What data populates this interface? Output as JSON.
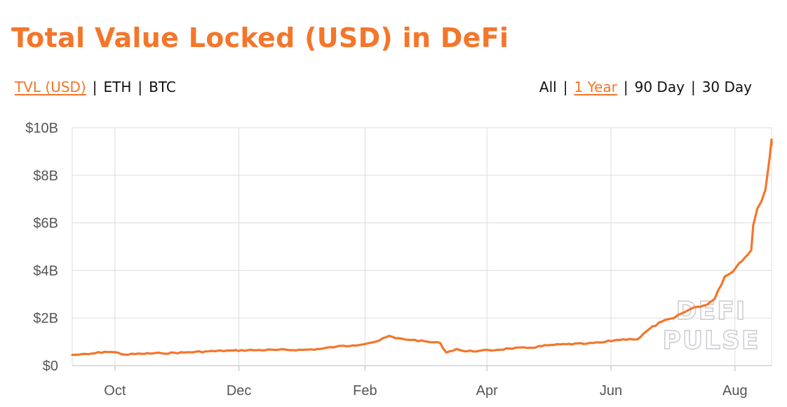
{
  "title": "Total Value Locked (USD) in DeFi",
  "metric_options": [
    {
      "label": "TVL (USD)",
      "active": true
    },
    {
      "label": "ETH",
      "active": false
    },
    {
      "label": "BTC",
      "active": false
    }
  ],
  "range_options": [
    {
      "label": "All",
      "active": false
    },
    {
      "label": "1 Year",
      "active": true
    },
    {
      "label": "90 Day",
      "active": false
    },
    {
      "label": "30 Day",
      "active": false
    }
  ],
  "separator": "|",
  "watermark": [
    "DEFI",
    "PULSE"
  ],
  "colors": {
    "accent": "#f4762a",
    "line": "#f4762a",
    "grid": "#dddddd",
    "tick_text": "#555555"
  },
  "chart_data": {
    "type": "line",
    "title": "Total Value Locked (USD) in DeFi",
    "xlabel": "",
    "ylabel": "",
    "y_unit": "billions USD",
    "ylim": [
      0,
      10
    ],
    "y_ticks": [
      0,
      2,
      4,
      6,
      8,
      10
    ],
    "y_tick_labels": [
      "$0",
      "$2B",
      "$4B",
      "$6B",
      "$8B",
      "$10B"
    ],
    "xlim": [
      "2019-09-10",
      "2020-08-19"
    ],
    "x_ticks": [
      "2019-10-01",
      "2019-12-01",
      "2020-02-01",
      "2020-04-01",
      "2020-06-01",
      "2020-08-01"
    ],
    "x_tick_labels": [
      "Oct",
      "Dec",
      "Feb",
      "Apr",
      "Jun",
      "Aug"
    ],
    "grid": true,
    "series": [
      {
        "color": "#f4762a",
        "points": [
          [
            "2019-09-10",
            0.45
          ],
          [
            "2019-09-18",
            0.48
          ],
          [
            "2019-09-26",
            0.58
          ],
          [
            "2019-10-01",
            0.56
          ],
          [
            "2019-10-06",
            0.46
          ],
          [
            "2019-10-14",
            0.5
          ],
          [
            "2019-10-24",
            0.52
          ],
          [
            "2019-11-04",
            0.55
          ],
          [
            "2019-11-16",
            0.6
          ],
          [
            "2019-11-28",
            0.63
          ],
          [
            "2019-12-08",
            0.65
          ],
          [
            "2019-12-20",
            0.66
          ],
          [
            "2020-01-01",
            0.66
          ],
          [
            "2020-01-10",
            0.7
          ],
          [
            "2020-01-18",
            0.8
          ],
          [
            "2020-01-26",
            0.85
          ],
          [
            "2020-02-03",
            0.95
          ],
          [
            "2020-02-08",
            1.05
          ],
          [
            "2020-02-13",
            1.25
          ],
          [
            "2020-02-16",
            1.15
          ],
          [
            "2020-02-24",
            1.08
          ],
          [
            "2020-03-03",
            1.0
          ],
          [
            "2020-03-09",
            0.95
          ],
          [
            "2020-03-12",
            0.55
          ],
          [
            "2020-03-17",
            0.7
          ],
          [
            "2020-03-21",
            0.6
          ],
          [
            "2020-03-28",
            0.62
          ],
          [
            "2020-04-06",
            0.66
          ],
          [
            "2020-04-12",
            0.72
          ],
          [
            "2020-04-22",
            0.75
          ],
          [
            "2020-05-01",
            0.85
          ],
          [
            "2020-05-10",
            0.9
          ],
          [
            "2020-05-20",
            0.92
          ],
          [
            "2020-05-28",
            0.98
          ],
          [
            "2020-06-04",
            1.08
          ],
          [
            "2020-06-10",
            1.12
          ],
          [
            "2020-06-14",
            1.1
          ],
          [
            "2020-06-20",
            1.55
          ],
          [
            "2020-06-26",
            1.85
          ],
          [
            "2020-07-02",
            2.0
          ],
          [
            "2020-07-06",
            2.2
          ],
          [
            "2020-07-12",
            2.45
          ],
          [
            "2020-07-18",
            2.55
          ],
          [
            "2020-07-22",
            2.8
          ],
          [
            "2020-07-27",
            3.75
          ],
          [
            "2020-07-31",
            3.95
          ],
          [
            "2020-08-03",
            4.3
          ],
          [
            "2020-08-06",
            4.55
          ],
          [
            "2020-08-09",
            4.85
          ],
          [
            "2020-08-10",
            5.9
          ],
          [
            "2020-08-12",
            6.6
          ],
          [
            "2020-08-14",
            6.9
          ],
          [
            "2020-08-16",
            7.4
          ],
          [
            "2020-08-18",
            8.7
          ],
          [
            "2020-08-19",
            9.5
          ],
          [
            "2020-08-19",
            9.25
          ]
        ]
      }
    ]
  }
}
